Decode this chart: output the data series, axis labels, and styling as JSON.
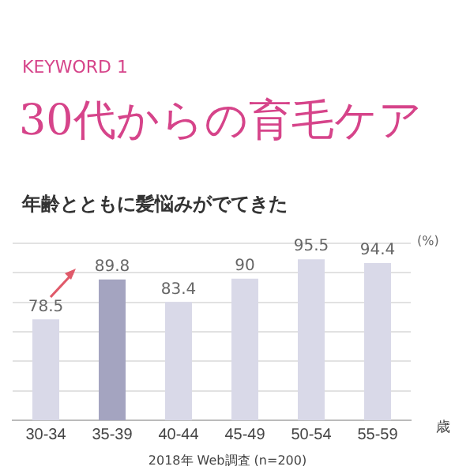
{
  "chart_data": {
    "type": "bar",
    "title": "30代からの育毛ケア",
    "subtitle": "年齢とともに髪悩みがでてきた",
    "xlabel": "歳",
    "annotations": [
      "KEYWORD 1",
      "(%)",
      "2018年 Web調査 (n=200)"
    ],
    "categories": [
      "30-34",
      "35-39",
      "40-44",
      "45-49",
      "50-54",
      "55-59"
    ],
    "values": [
      78.5,
      89.8,
      83.4,
      90,
      95.5,
      94.4
    ],
    "colors": [
      "#d9d9e8",
      "#a4a4c0",
      "#d9d9e8",
      "#d9d9e8",
      "#d9d9e8",
      "#d9d9e8"
    ],
    "ylim": [
      50,
      100
    ],
    "yticks": [
      {
        "value": 50,
        "label": null
      },
      {
        "value": 58.3,
        "label": null
      },
      {
        "value": 66.7,
        "label": null
      },
      {
        "value": 75,
        "label": null
      },
      {
        "value": 83.3,
        "label": null
      },
      {
        "value": 91.7,
        "label": null
      },
      {
        "value": 100,
        "label": null
      }
    ],
    "grid": "y",
    "data_labels": true,
    "tick_labels": "x",
    "legend": false
  }
}
